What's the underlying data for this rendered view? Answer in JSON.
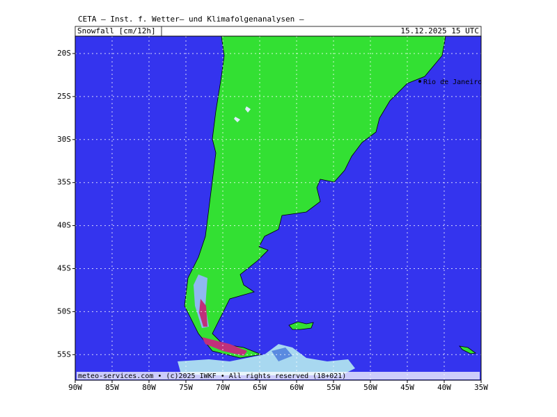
{
  "header": {
    "title": "CETA — Inst. f. Wetter— und Klimafolgenanalysen —",
    "field": "Snowfall [cm/12h]",
    "valid_time": "15.12.2025 15 UTC"
  },
  "map": {
    "city_label": "Rio de Janeiro",
    "lat_labels": [
      "20S",
      "25S",
      "30S",
      "35S",
      "40S",
      "45S",
      "50S",
      "55S"
    ],
    "lon_labels": [
      "90W",
      "85W",
      "80W",
      "75W",
      "70W",
      "65W",
      "60W",
      "55W",
      "50W",
      "45W",
      "40W",
      "35W"
    ]
  },
  "footer": {
    "credit": "meteo-services.com • (c)2025 IWKF • All rights reserved (18+021)"
  }
}
